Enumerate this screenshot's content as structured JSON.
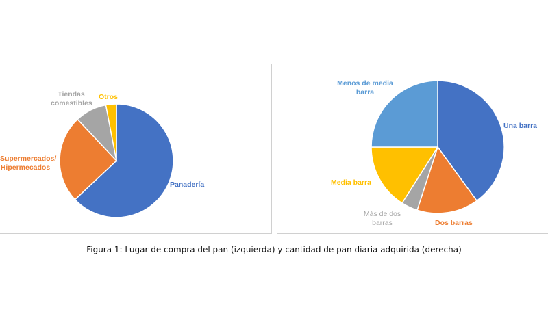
{
  "chart_data": [
    {
      "type": "pie",
      "title": "",
      "start": "top-clockwise",
      "slices": [
        {
          "label": "Panadería",
          "value": 63,
          "color": "#4472C4"
        },
        {
          "label": "Supermercados/ Hipermecados",
          "value": 25,
          "color": "#ED7D31"
        },
        {
          "label": "Tiendas comestibles",
          "value": 9,
          "color": "#A5A5A5"
        },
        {
          "label": "Otros",
          "value": 3,
          "color": "#FFC000"
        }
      ]
    },
    {
      "type": "pie",
      "title": "",
      "start": "top-clockwise",
      "slices": [
        {
          "label": "Una barra",
          "value": 40,
          "color": "#4472C4"
        },
        {
          "label": "Dos barras",
          "value": 15,
          "color": "#ED7D31"
        },
        {
          "label": "Más de dos barras",
          "value": 4,
          "color": "#A5A5A5"
        },
        {
          "label": "Media barra",
          "value": 16,
          "color": "#FFC000"
        },
        {
          "label": "Menos de media barra",
          "value": 25,
          "color": "#5B9BD5"
        }
      ]
    }
  ],
  "caption": "Figura 1: Lugar de compra del pan (izquierda) y cantidad de pan diaria adquirida (derecha)"
}
